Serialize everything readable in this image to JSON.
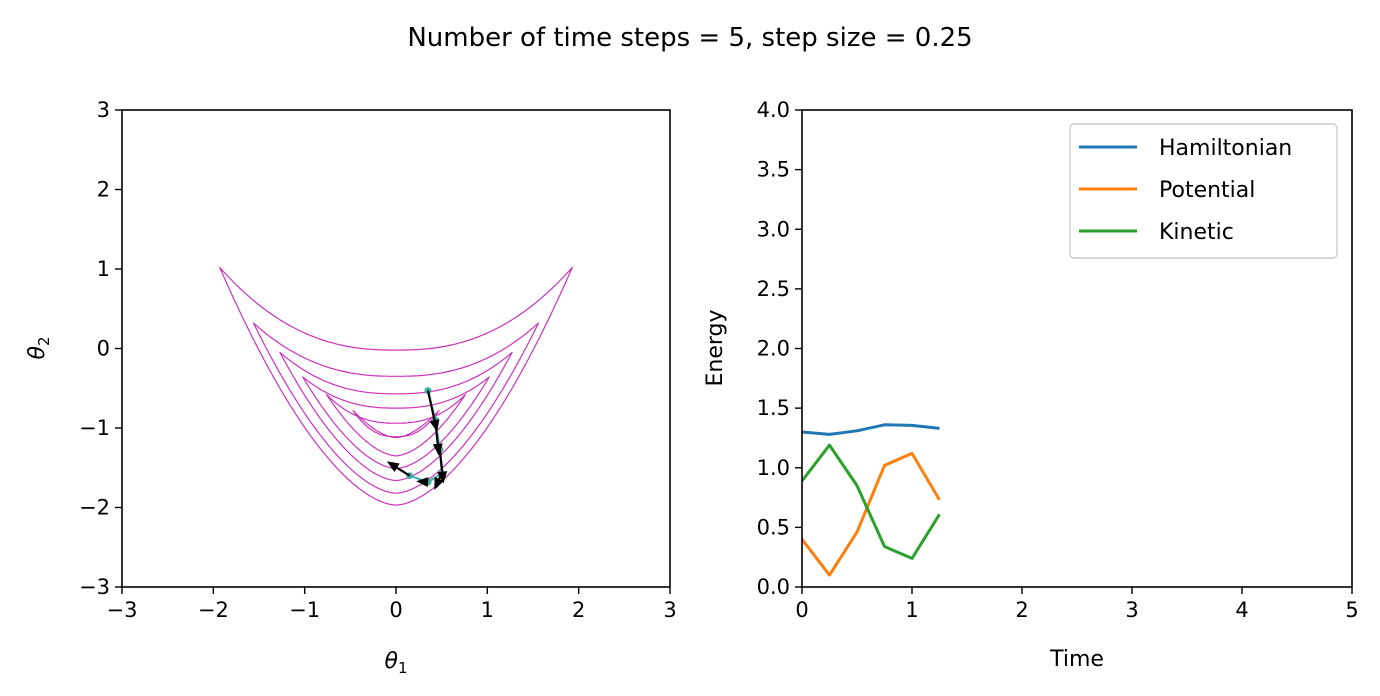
{
  "title": "Number of time steps = 5, step size = 0.25",
  "chart_data": [
    {
      "type": "contour",
      "xlabel_sym": "θ",
      "xlabel_sub": "1",
      "ylabel_sym": "θ",
      "ylabel_sub": "2",
      "xlim": [
        -3,
        3
      ],
      "ylim": [
        -3,
        3
      ],
      "xticks": [
        -3,
        -2,
        -1,
        0,
        1,
        2,
        3
      ],
      "yticks": [
        -3,
        -2,
        -1,
        0,
        1,
        2,
        3
      ],
      "contour_color": "#cc33bb",
      "trajectory_color": "#3fb0a8",
      "arrow_color": "#000000",
      "contour_levels": [
        {
          "xmin": -1.93,
          "xmax": 1.93,
          "ymin": -1.97,
          "ytip": 1.02,
          "ymid": -0.02
        },
        {
          "xmin": -1.56,
          "xmax": 1.56,
          "ymin": -1.82,
          "ytip": 0.32,
          "ymid": -0.35
        },
        {
          "xmin": -1.27,
          "xmax": 1.27,
          "ymin": -1.66,
          "ytip": -0.05,
          "ymid": -0.57
        },
        {
          "xmin": -1.02,
          "xmax": 1.02,
          "ymin": -1.51,
          "ytip": -0.36,
          "ymid": -0.75
        },
        {
          "xmin": -0.76,
          "xmax": 0.76,
          "ymin": -1.35,
          "ytip": -0.58,
          "ymid": -0.94
        },
        {
          "xmin": -0.47,
          "xmax": 0.47,
          "ymin": -1.12,
          "ytip": -0.78,
          "ymid": -1.11
        }
      ],
      "trajectory": [
        {
          "x": 0.35,
          "y": -0.53
        },
        {
          "x": 0.43,
          "y": -0.9
        },
        {
          "x": 0.48,
          "y": -1.27
        },
        {
          "x": 0.5,
          "y": -1.57
        },
        {
          "x": 0.35,
          "y": -1.68
        },
        {
          "x": 0.15,
          "y": -1.6
        }
      ],
      "arrows": [
        {
          "x0": 0.15,
          "y0": -1.6,
          "x1": -0.1,
          "y1": -1.42
        },
        {
          "x0": 0.35,
          "y0": -1.68,
          "x1": 0.22,
          "y1": -1.67
        },
        {
          "x0": 0.5,
          "y0": -1.57,
          "x1": 0.42,
          "y1": -1.78
        },
        {
          "x0": 0.48,
          "y0": -1.27,
          "x1": 0.52,
          "y1": -1.7
        },
        {
          "x0": 0.43,
          "y0": -0.9,
          "x1": 0.47,
          "y1": -1.35
        },
        {
          "x0": 0.35,
          "y0": -0.53,
          "x1": 0.45,
          "y1": -1.05
        }
      ]
    },
    {
      "type": "line",
      "xlabel": "Time",
      "ylabel": "Energy",
      "xlim": [
        0,
        5
      ],
      "ylim": [
        0,
        4
      ],
      "xticks": [
        "0",
        "1",
        "2",
        "3",
        "4",
        "5"
      ],
      "yticks": [
        "0.0",
        "0.5",
        "1.0",
        "1.5",
        "2.0",
        "2.5",
        "3.0",
        "3.5",
        "4.0"
      ],
      "legend_position": "top-right",
      "x": [
        0,
        0.25,
        0.5,
        0.75,
        1.0,
        1.25
      ],
      "series": [
        {
          "name": "Hamiltonian",
          "color": "#1f77b4",
          "values": [
            1.3,
            1.28,
            1.31,
            1.36,
            1.355,
            1.33
          ]
        },
        {
          "name": "Potential",
          "color": "#ff7f0e",
          "values": [
            0.4,
            0.1,
            0.46,
            1.02,
            1.12,
            0.73
          ]
        },
        {
          "name": "Kinetic",
          "color": "#2ca02c",
          "values": [
            0.89,
            1.19,
            0.85,
            0.34,
            0.24,
            0.61
          ]
        }
      ]
    }
  ]
}
